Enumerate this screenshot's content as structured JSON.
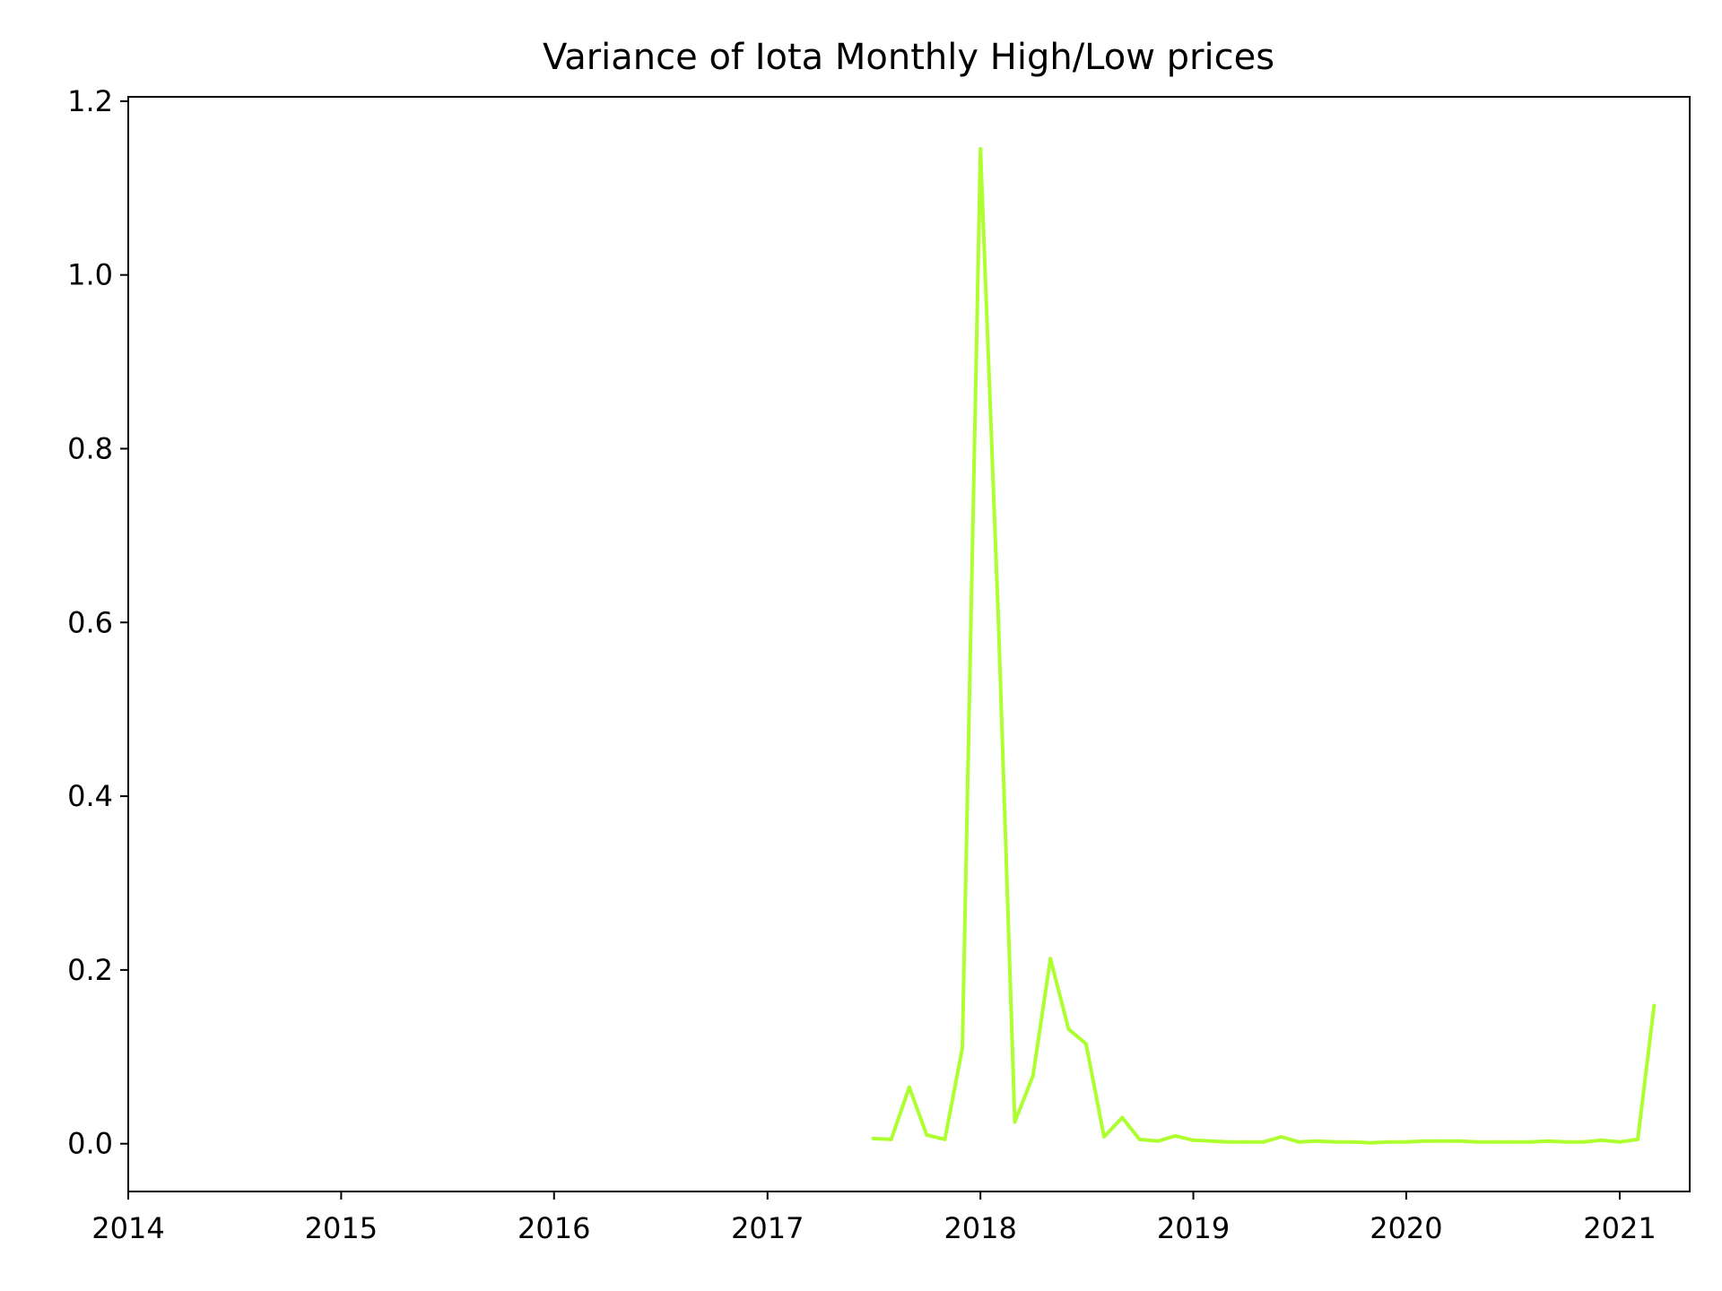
{
  "chart_data": {
    "type": "line",
    "title": "Variance of Iota Monthly High/Low prices",
    "xlabel": "",
    "ylabel": "",
    "xlim": [
      "2014-01-01",
      "2021-05-01"
    ],
    "ylim": [
      -0.055,
      1.205
    ],
    "xticks": [
      "2014",
      "2015",
      "2016",
      "2017",
      "2018",
      "2019",
      "2020",
      "2021"
    ],
    "yticks": [
      "0.0",
      "0.2",
      "0.4",
      "0.6",
      "0.8",
      "1.0",
      "1.2"
    ],
    "grid": false,
    "line_color": "#adff2f",
    "series": [
      {
        "x": [
          "2017-07",
          "2017-08",
          "2017-09",
          "2017-10",
          "2017-11",
          "2017-12",
          "2018-01",
          "2018-02",
          "2018-03",
          "2018-04",
          "2018-05",
          "2018-06",
          "2018-07",
          "2018-08",
          "2018-09",
          "2018-10",
          "2018-11",
          "2018-12",
          "2019-01",
          "2019-02",
          "2019-03",
          "2019-04",
          "2019-05",
          "2019-06",
          "2019-07",
          "2019-08",
          "2019-09",
          "2019-10",
          "2019-11",
          "2019-12",
          "2020-01",
          "2020-02",
          "2020-03",
          "2020-04",
          "2020-05",
          "2020-06",
          "2020-07",
          "2020-08",
          "2020-09",
          "2020-10",
          "2020-11",
          "2020-12",
          "2021-01",
          "2021-02",
          "2021-03"
        ],
        "values": [
          0.006,
          0.005,
          0.065,
          0.01,
          0.005,
          0.11,
          1.145,
          0.6,
          0.025,
          0.078,
          0.213,
          0.132,
          0.115,
          0.008,
          0.03,
          0.005,
          0.003,
          0.009,
          0.004,
          0.003,
          0.002,
          0.002,
          0.002,
          0.008,
          0.002,
          0.003,
          0.002,
          0.002,
          0.001,
          0.002,
          0.002,
          0.003,
          0.003,
          0.003,
          0.002,
          0.002,
          0.002,
          0.002,
          0.003,
          0.002,
          0.002,
          0.004,
          0.002,
          0.005,
          0.159
        ]
      }
    ]
  }
}
